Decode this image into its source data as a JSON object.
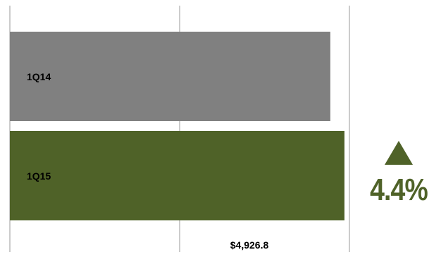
{
  "chart_data": {
    "type": "bar",
    "orientation": "horizontal",
    "categories": [
      "1Q14",
      "1Q15"
    ],
    "values": [
      4719,
      4926.8
    ],
    "colors": [
      "#808080",
      "#4f6228"
    ],
    "grid": true,
    "xlim": [
      0,
      5000
    ],
    "xticks": [
      0,
      2500,
      5000
    ],
    "data_labels": [
      "",
      "$4,926.8"
    ],
    "annotation": {
      "direction": "up",
      "label": "4.4%",
      "color": "#4f6228"
    }
  }
}
